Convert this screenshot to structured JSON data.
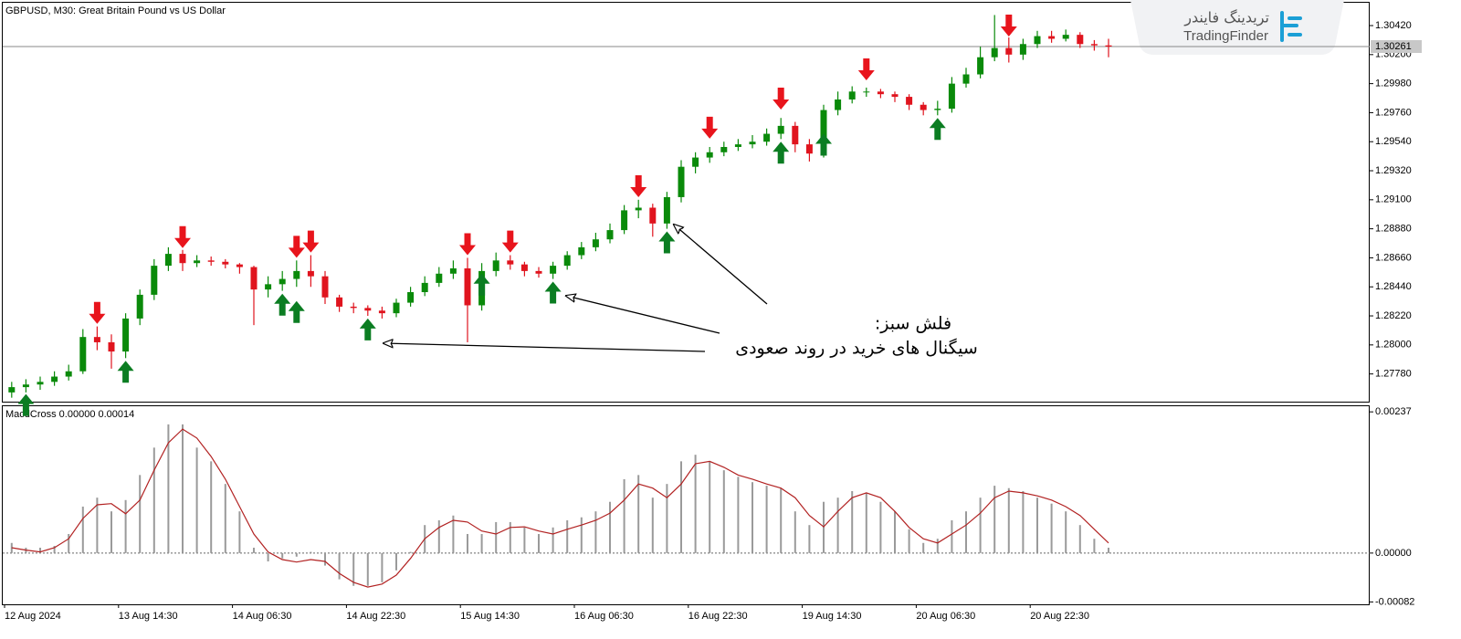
{
  "chart_data": [
    {
      "type": "candlestick",
      "title": "GBPUSD, M30:  Great Britain Pound vs US Dollar",
      "open": [
        1.2764,
        1.2768,
        1.277,
        1.2772,
        1.2776,
        1.278,
        1.2806,
        1.2802,
        1.2795,
        1.282,
        1.2838,
        1.286,
        1.2869,
        1.2862,
        1.2864,
        1.2863,
        1.2861,
        1.2859,
        1.2842,
        1.2846,
        1.285,
        1.2856,
        1.2852,
        1.2836,
        1.2829,
        1.2828,
        1.2826,
        1.2824,
        1.2832,
        1.284,
        1.2847,
        1.2854,
        1.2858,
        1.283,
        1.2856,
        1.2864,
        1.2861,
        1.2856,
        1.2854,
        1.286,
        1.2868,
        1.2874,
        1.288,
        1.2887,
        1.2902,
        1.2904,
        1.2892,
        1.2912,
        1.2935,
        1.2942,
        1.2946,
        1.295,
        1.2952,
        1.2954,
        1.296,
        1.2966,
        1.2952,
        1.2945,
        1.2978,
        1.2986,
        1.2992,
        1.2992,
        1.299,
        1.2988,
        1.2982,
        1.2978,
        1.2979,
        1.2998,
        1.3005,
        1.3018,
        1.3025,
        1.302,
        1.3028,
        1.3034,
        1.3032,
        1.3035,
        1.3028,
        1.3027
      ],
      "high": [
        1.2772,
        1.2774,
        1.2776,
        1.278,
        1.2785,
        1.2812,
        1.2814,
        1.2808,
        1.2824,
        1.2842,
        1.2865,
        1.2874,
        1.2872,
        1.2868,
        1.2867,
        1.2865,
        1.2862,
        1.286,
        1.2852,
        1.2856,
        1.2864,
        1.2868,
        1.2856,
        1.2838,
        1.2832,
        1.283,
        1.2829,
        1.2835,
        1.2844,
        1.2852,
        1.2859,
        1.2864,
        1.2866,
        1.2862,
        1.287,
        1.2868,
        1.2863,
        1.2859,
        1.2863,
        1.2871,
        1.2878,
        1.2885,
        1.2892,
        1.2906,
        1.291,
        1.2907,
        1.2916,
        1.294,
        1.2946,
        1.295,
        1.2954,
        1.2956,
        1.2959,
        1.2964,
        1.2972,
        1.2969,
        1.2956,
        1.2982,
        1.2992,
        1.2996,
        1.2995,
        1.2994,
        1.2992,
        1.299,
        1.2984,
        1.2985,
        1.3003,
        1.301,
        1.3026,
        1.305,
        1.3033,
        1.3032,
        1.3038,
        1.3038,
        1.3039,
        1.3037,
        1.3031,
        1.3032
      ],
      "low": [
        1.276,
        1.2764,
        1.2766,
        1.2769,
        1.2773,
        1.2778,
        1.2796,
        1.2782,
        1.279,
        1.2815,
        1.2834,
        1.2856,
        1.2856,
        1.2859,
        1.286,
        1.2858,
        1.2854,
        1.2815,
        1.2836,
        1.2841,
        1.2844,
        1.2844,
        1.2831,
        1.2825,
        1.2824,
        1.2822,
        1.282,
        1.2821,
        1.2829,
        1.2837,
        1.2844,
        1.285,
        1.2802,
        1.2826,
        1.2852,
        1.2857,
        1.2852,
        1.2851,
        1.285,
        1.2857,
        1.2865,
        1.2871,
        1.2877,
        1.2884,
        1.2896,
        1.2882,
        1.2888,
        1.2908,
        1.293,
        1.2938,
        1.2943,
        1.2947,
        1.2949,
        1.2951,
        1.2956,
        1.2946,
        1.2939,
        1.2942,
        1.2974,
        1.2983,
        1.2988,
        1.2987,
        1.2984,
        1.2978,
        1.2974,
        1.2974,
        1.2976,
        1.2995,
        1.3002,
        1.3015,
        1.3014,
        1.3016,
        1.3025,
        1.3029,
        1.303,
        1.3025,
        1.3023,
        1.3018
      ],
      "close": [
        1.2768,
        1.277,
        1.2772,
        1.2776,
        1.278,
        1.2806,
        1.2802,
        1.2795,
        1.282,
        1.2838,
        1.286,
        1.2869,
        1.2862,
        1.2864,
        1.2863,
        1.2861,
        1.2859,
        1.2842,
        1.2846,
        1.285,
        1.2856,
        1.2852,
        1.2836,
        1.2829,
        1.2828,
        1.2826,
        1.2824,
        1.2832,
        1.284,
        1.2847,
        1.2854,
        1.2858,
        1.283,
        1.2856,
        1.2864,
        1.2861,
        1.2856,
        1.2854,
        1.286,
        1.2868,
        1.2874,
        1.288,
        1.2887,
        1.2902,
        1.2904,
        1.2892,
        1.2912,
        1.2935,
        1.2942,
        1.2946,
        1.295,
        1.2952,
        1.2954,
        1.296,
        1.2966,
        1.2952,
        1.2945,
        1.2978,
        1.2986,
        1.2992,
        1.2992,
        1.299,
        1.2988,
        1.2982,
        1.2978,
        1.2979,
        1.2998,
        1.3005,
        1.3018,
        1.3025,
        1.302,
        1.3028,
        1.3034,
        1.3032,
        1.3035,
        1.3028,
        1.3027,
        1.30261
      ],
      "up_color": "#0a8a0a",
      "down_color": "#e0141e",
      "ylim": [
        1.2757,
        1.306
      ],
      "yticks": [
        {
          "value": 1.3042,
          "label": "1.30420"
        },
        {
          "value": 1.302,
          "label": "1.30200"
        },
        {
          "value": 1.2998,
          "label": "1.29980"
        },
        {
          "value": 1.2976,
          "label": "1.29760"
        },
        {
          "value": 1.2954,
          "label": "1.29540"
        },
        {
          "value": 1.2932,
          "label": "1.29320"
        },
        {
          "value": 1.291,
          "label": "1.29100"
        },
        {
          "value": 1.2888,
          "label": "1.28880"
        },
        {
          "value": 1.2866,
          "label": "1.28660"
        },
        {
          "value": 1.2844,
          "label": "1.28440"
        },
        {
          "value": 1.2822,
          "label": "1.28220"
        },
        {
          "value": 1.28,
          "label": "1.28000"
        },
        {
          "value": 1.2778,
          "label": "1.27780"
        }
      ],
      "current_price": 1.30261,
      "sell_arrows": {
        "color": "#e8141c",
        "x": [
          6,
          12,
          20,
          21,
          32,
          35,
          44,
          49,
          54,
          60,
          70
        ],
        "y": [
          1.2816,
          1.28734,
          1.2866,
          1.287,
          1.2868,
          1.287,
          1.2912,
          1.29563,
          1.29784,
          1.30005,
          1.30337
        ]
      },
      "buy_arrows": {
        "color": "#0b7d22",
        "x": [
          1,
          8,
          19,
          20,
          25,
          33,
          38,
          46,
          54,
          57,
          65
        ],
        "y": [
          1.27628,
          1.2788,
          1.28388,
          1.28333,
          1.282,
          1.2854,
          1.2848,
          1.2886,
          1.2954,
          1.296,
          1.2972
        ]
      },
      "annotation": {
        "title": "فلش سبز:",
        "text": "سیگنال های خرید در روند صعودی"
      }
    },
    {
      "type": "macd",
      "title": "MacdCross 0.00000 0.00014",
      "categories": [
        "12 Aug 2024",
        null,
        null,
        null,
        null,
        null,
        null,
        null,
        "13 Aug 14:30",
        null,
        null,
        null,
        null,
        null,
        null,
        null,
        "14 Aug 06:30",
        null,
        null,
        null,
        null,
        null,
        null,
        null,
        "14 Aug 22:30",
        null,
        null,
        null,
        null,
        null,
        null,
        null,
        "15 Aug 14:30",
        null,
        null,
        null,
        null,
        null,
        null,
        null,
        "16 Aug 06:30",
        null,
        null,
        null,
        null,
        null,
        null,
        null,
        "16 Aug 22:30",
        null,
        null,
        null,
        null,
        null,
        null,
        null,
        "19 Aug 14:30",
        null,
        null,
        null,
        null,
        null,
        null,
        null,
        "20 Aug 06:30",
        null,
        null,
        null,
        null,
        null,
        null,
        null,
        "20 Aug 22:30",
        null,
        null,
        null,
        null,
        null
      ],
      "histogram": {
        "color": "#9a9a9a",
        "values": [
          0.00017,
          9e-05,
          9e-05,
          0.00012,
          0.00032,
          0.00078,
          0.00093,
          0.0007,
          0.00089,
          0.00131,
          0.00177,
          0.00216,
          0.00216,
          0.00177,
          0.00154,
          0.00116,
          0.0007,
          9e-05,
          -0.00014,
          -9e-05,
          -6e-05,
          2e-05,
          -0.00021,
          -0.00044,
          -0.00055,
          -0.00055,
          -0.00049,
          -0.00029,
          2e-05,
          0.00047,
          0.00055,
          0.00063,
          0.00032,
          0.00032,
          0.00052,
          0.00052,
          0.00043,
          0.00032,
          0.00043,
          0.00055,
          0.0006,
          0.0007,
          0.00086,
          0.00124,
          0.00131,
          0.00093,
          0.00116,
          0.00154,
          0.00165,
          0.00154,
          0.00139,
          0.00128,
          0.00119,
          0.00113,
          0.00109,
          0.0007,
          0.00047,
          0.00086,
          0.00093,
          0.00104,
          0.00101,
          0.00086,
          0.0007,
          0.0004,
          0.00017,
          0.00024,
          0.00055,
          0.0007,
          0.00093,
          0.00113,
          0.00109,
          0.00104,
          0.00093,
          0.00083,
          0.0007,
          0.00047,
          0.00024,
          9e-05
        ]
      },
      "signal": {
        "color": "#b22222",
        "values": [
          9e-05,
          5e-05,
          2e-05,
          9e-05,
          0.00024,
          0.00058,
          0.00081,
          0.00083,
          0.00066,
          0.00089,
          0.00139,
          0.00185,
          0.00208,
          0.00193,
          0.00162,
          0.00124,
          0.00078,
          0.00032,
          2e-05,
          -0.00011,
          -0.00015,
          -0.00011,
          -0.00014,
          -0.00034,
          -0.00049,
          -0.00057,
          -0.00052,
          -0.00037,
          -9e-05,
          0.00024,
          0.00043,
          0.00055,
          0.00052,
          0.00037,
          0.00032,
          0.00043,
          0.00044,
          0.00037,
          0.00032,
          0.0004,
          0.00047,
          0.00055,
          0.00067,
          0.00089,
          0.00116,
          0.00109,
          0.00093,
          0.00116,
          0.0015,
          0.00154,
          0.00144,
          0.00131,
          0.00124,
          0.00116,
          0.00109,
          0.00093,
          0.00063,
          0.00044,
          0.0007,
          0.00093,
          0.00101,
          0.00093,
          0.0007,
          0.00043,
          0.00024,
          0.00017,
          0.00032,
          0.00047,
          0.00067,
          0.00093,
          0.00104,
          0.00101,
          0.00096,
          0.00089,
          0.00078,
          0.00063,
          0.0004,
          0.00017
        ]
      },
      "ylim": [
        -0.00086,
        0.00248
      ],
      "yticks": [
        0.00237,
        {
          "value": 0,
          "label": "0.00000"
        },
        -0.00082
      ]
    }
  ],
  "logo": {
    "fa": "تریدینگ فایندر",
    "en": "TradingFinder"
  }
}
